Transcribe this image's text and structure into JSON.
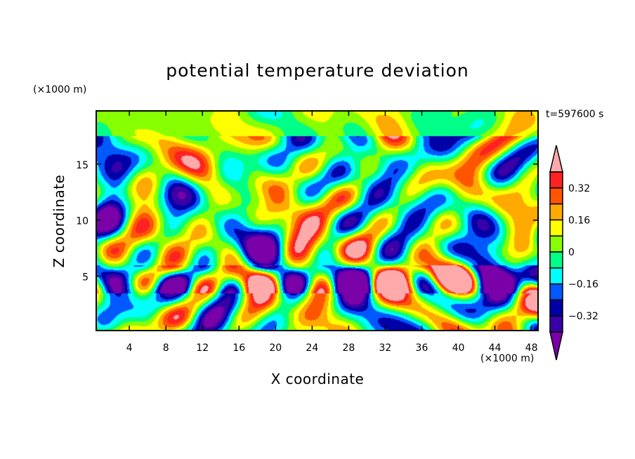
{
  "chart_data": {
    "type": "heatmap",
    "title": "potential temperature deviation",
    "xlabel": "X coordinate",
    "ylabel": "Z coordinate",
    "x_unit": "(×1000 m)",
    "y_unit": "(×1000 m)",
    "time_label": "t=597600 s",
    "xlim": [
      0.3,
      48.8
    ],
    "ylim": [
      0.1,
      19.8
    ],
    "x_ticks": [
      4,
      8,
      12,
      16,
      20,
      24,
      28,
      32,
      36,
      40,
      44,
      48
    ],
    "x_tick_labels": [
      "4",
      "8",
      "12",
      "16",
      "20",
      "24",
      "28",
      "32",
      "36",
      "40",
      "44",
      "48"
    ],
    "y_ticks": [
      5,
      10,
      15
    ],
    "y_tick_labels": [
      "5",
      "10",
      "15"
    ],
    "colorbar": {
      "levels": [
        -0.4,
        -0.32,
        -0.24,
        -0.16,
        -0.08,
        0,
        0.08,
        0.16,
        0.24,
        0.32,
        0.4
      ],
      "colors": [
        "#7a00a8",
        "#3a00a8",
        "#0000a8",
        "#0058ff",
        "#00ffff",
        "#00ff88",
        "#88ff00",
        "#ffff00",
        "#ffaa00",
        "#ff5500",
        "#ff2222",
        "#ffaaaa"
      ],
      "labels": [
        "0.32",
        "0.16",
        "0",
        "−0.16",
        "−0.32"
      ],
      "label_values": [
        0.32,
        0.16,
        0,
        -0.16,
        -0.32
      ],
      "extend": "both"
    }
  }
}
